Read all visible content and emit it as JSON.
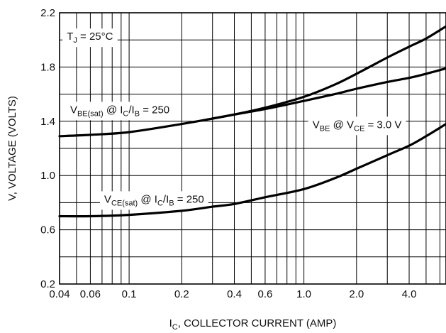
{
  "chart_data": {
    "type": "line",
    "xscale": "log",
    "xlim": [
      0.04,
      6.5
    ],
    "ylim": [
      0.2,
      2.2
    ],
    "xticks": [
      {
        "value": 0.04,
        "label": "0.04"
      },
      {
        "value": 0.06,
        "label": "0.06"
      },
      {
        "value": 0.1,
        "label": "0.1"
      },
      {
        "value": 0.2,
        "label": "0.2"
      },
      {
        "value": 0.4,
        "label": "0.4"
      },
      {
        "value": 0.6,
        "label": "0.6"
      },
      {
        "value": 1.0,
        "label": "1.0"
      },
      {
        "value": 2.0,
        "label": "2.0"
      },
      {
        "value": 4.0,
        "label": "4.0"
      }
    ],
    "yticks": [
      {
        "value": 0.2,
        "label": "0.2"
      },
      {
        "value": 0.6,
        "label": "0.6"
      },
      {
        "value": 1.0,
        "label": "1.0"
      },
      {
        "value": 1.4,
        "label": "1.4"
      },
      {
        "value": 1.8,
        "label": "1.8"
      },
      {
        "value": 2.2,
        "label": "2.2"
      }
    ],
    "xgrid": [
      0.04,
      0.05,
      0.06,
      0.07,
      0.08,
      0.09,
      0.1,
      0.2,
      0.3,
      0.4,
      0.5,
      0.6,
      0.7,
      0.8,
      0.9,
      1.0,
      2.0,
      3.0,
      4.0,
      5.0,
      6.0
    ],
    "ygrid": [
      0.2,
      0.4,
      0.6,
      0.8,
      1.0,
      1.2,
      1.4,
      1.6,
      1.8,
      2.0,
      2.2
    ],
    "grid": true,
    "xlabel": {
      "main": "I",
      "sub": "C",
      "rest": ", COLLECTOR CURRENT (AMP)"
    },
    "ylabel": "V, VOLTAGE (VOLTS)",
    "series": [
      {
        "id": "vbe_sat",
        "x": [
          0.04,
          0.06,
          0.1,
          0.2,
          0.3,
          0.4,
          0.6,
          1.0,
          1.5,
          2.0,
          3.0,
          4.0,
          5.0,
          6.5
        ],
        "y": [
          1.29,
          1.3,
          1.32,
          1.38,
          1.42,
          1.45,
          1.5,
          1.58,
          1.67,
          1.75,
          1.87,
          1.95,
          2.01,
          2.1
        ]
      },
      {
        "id": "vbe",
        "x": [
          0.3,
          0.4,
          0.6,
          1.0,
          1.5,
          2.0,
          3.0,
          4.0,
          5.0,
          6.5
        ],
        "y": [
          1.42,
          1.45,
          1.49,
          1.55,
          1.6,
          1.64,
          1.69,
          1.72,
          1.75,
          1.79
        ]
      },
      {
        "id": "vce_sat",
        "x": [
          0.04,
          0.06,
          0.1,
          0.2,
          0.3,
          0.4,
          0.6,
          1.0,
          1.5,
          2.0,
          3.0,
          4.0,
          5.0,
          6.5
        ],
        "y": [
          0.7,
          0.7,
          0.71,
          0.74,
          0.77,
          0.79,
          0.84,
          0.9,
          0.98,
          1.05,
          1.15,
          1.22,
          1.29,
          1.38
        ]
      }
    ],
    "annotations": [
      {
        "id": "tj",
        "x": 0.044,
        "y": 2.0,
        "parts": [
          [
            "T",
            ""
          ],
          [
            "J",
            "sub"
          ],
          [
            " = 25°C",
            ""
          ]
        ]
      },
      {
        "id": "vbe_sat_label",
        "x": 0.046,
        "y": 1.46,
        "parts": [
          [
            "V",
            ""
          ],
          [
            "BE(sat)",
            "sub"
          ],
          [
            " @ I",
            ""
          ],
          [
            "C",
            "sub"
          ],
          [
            "/I",
            ""
          ],
          [
            "B",
            "sub"
          ],
          [
            " = 250",
            ""
          ]
        ]
      },
      {
        "id": "vbe_label",
        "x": 1.12,
        "y": 1.35,
        "parts": [
          [
            "V",
            ""
          ],
          [
            "BE",
            "sub"
          ],
          [
            " @ V",
            ""
          ],
          [
            "CE",
            "sub"
          ],
          [
            " = 3.0 V",
            ""
          ]
        ]
      },
      {
        "id": "vce_sat_label",
        "x": 0.072,
        "y": 0.8,
        "parts": [
          [
            "V",
            ""
          ],
          [
            "CE(sat)",
            "sub"
          ],
          [
            " @ I",
            ""
          ],
          [
            "C",
            "sub"
          ],
          [
            "/I",
            ""
          ],
          [
            "B",
            "sub"
          ],
          [
            " = 250",
            ""
          ]
        ]
      }
    ]
  }
}
